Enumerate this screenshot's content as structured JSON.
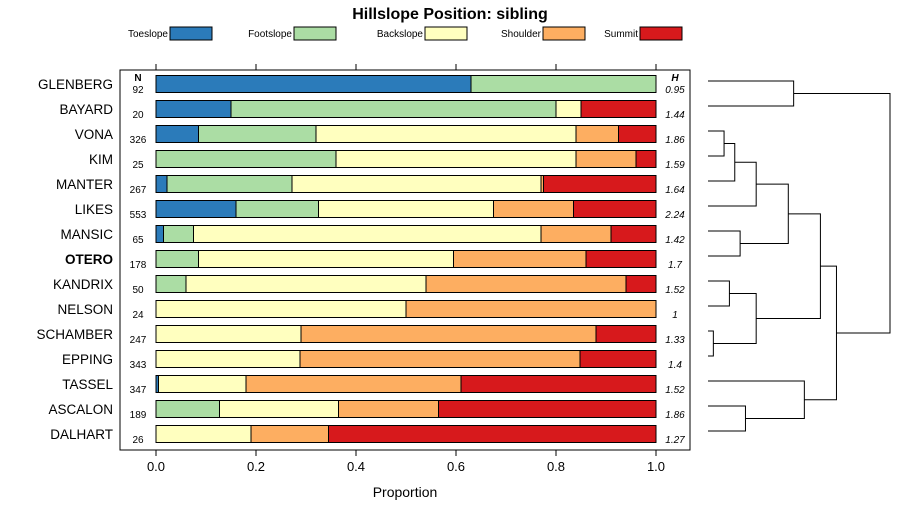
{
  "chart_data": {
    "type": "bar",
    "stacked": true,
    "orientation": "horizontal",
    "title": "Hillslope Position: sibling",
    "xlabel": "Proportion",
    "xlim": [
      0,
      1
    ],
    "xticks": [
      "0.0",
      "0.2",
      "0.4",
      "0.6",
      "0.8",
      "1.0"
    ],
    "n_header": "N",
    "h_header": "H",
    "legend": [
      {
        "name": "Toeslope",
        "color": "#2b7bba"
      },
      {
        "name": "Footslope",
        "color": "#abdda4"
      },
      {
        "name": "Backslope",
        "color": "#ffffbf"
      },
      {
        "name": "Shoulder",
        "color": "#fdae61"
      },
      {
        "name": "Summit",
        "color": "#d7191c"
      }
    ],
    "highlight": "OTERO",
    "categories": [
      {
        "name": "GLENBERG",
        "n": "92",
        "h": "0.95",
        "values": [
          0.63,
          0.37,
          0,
          0,
          0
        ]
      },
      {
        "name": "BAYARD",
        "n": "20",
        "h": "1.44",
        "values": [
          0.15,
          0.65,
          0.05,
          0,
          0.15
        ]
      },
      {
        "name": "VONA",
        "n": "326",
        "h": "1.86",
        "values": [
          0.085,
          0.235,
          0.52,
          0.085,
          0.075
        ]
      },
      {
        "name": "KIM",
        "n": "25",
        "h": "1.59",
        "values": [
          0,
          0.36,
          0.48,
          0.12,
          0.04
        ]
      },
      {
        "name": "MANTER",
        "n": "267",
        "h": "1.64",
        "values": [
          0.022,
          0.25,
          0.498,
          0.005,
          0.225
        ]
      },
      {
        "name": "LIKES",
        "n": "553",
        "h": "2.24",
        "values": [
          0.16,
          0.165,
          0.35,
          0.16,
          0.165
        ]
      },
      {
        "name": "MANSIC",
        "n": "65",
        "h": "1.42",
        "values": [
          0.015,
          0.06,
          0.695,
          0.14,
          0.09
        ]
      },
      {
        "name": "OTERO",
        "n": "178",
        "h": "1.7",
        "values": [
          0,
          0.085,
          0.51,
          0.265,
          0.14
        ]
      },
      {
        "name": "KANDRIX",
        "n": "50",
        "h": "1.52",
        "values": [
          0,
          0.06,
          0.48,
          0.4,
          0.06
        ]
      },
      {
        "name": "NELSON",
        "n": "24",
        "h": "1",
        "values": [
          0,
          0,
          0.5,
          0.5,
          0
        ]
      },
      {
        "name": "SCHAMBER",
        "n": "247",
        "h": "1.33",
        "values": [
          0,
          0,
          0.29,
          0.59,
          0.12
        ]
      },
      {
        "name": "EPPING",
        "n": "343",
        "h": "1.4",
        "values": [
          0,
          0,
          0.288,
          0.56,
          0.152
        ]
      },
      {
        "name": "TASSEL",
        "n": "347",
        "h": "1.52",
        "values": [
          0.005,
          0,
          0.175,
          0.43,
          0.39
        ]
      },
      {
        "name": "ASCALON",
        "n": "189",
        "h": "1.86",
        "values": [
          0,
          0.127,
          0.238,
          0.2,
          0.435
        ]
      },
      {
        "name": "DALHART",
        "n": "26",
        "h": "1.27",
        "values": [
          0,
          0,
          0.19,
          0.155,
          0.655
        ]
      }
    ],
    "dendrogram": {
      "type": "hierarchical clustering",
      "merges": [
        {
          "name": "node-vona-kim",
          "a": "VONA",
          "b": "KIM",
          "height": 0.3
        },
        {
          "name": "node-vk-manter",
          "a": "node-vona-kim",
          "b": "MANTER",
          "height": 0.5
        },
        {
          "name": "node-vkm-likes",
          "a": "node-vk-manter",
          "b": "LIKES",
          "height": 0.9
        },
        {
          "name": "node-mansic-otero",
          "a": "MANSIC",
          "b": "OTERO",
          "height": 0.6
        },
        {
          "name": "node-upper-mid",
          "a": "node-vkm-likes",
          "b": "node-mansic-otero",
          "height": 1.5
        },
        {
          "name": "node-kandrix-nelson",
          "a": "KANDRIX",
          "b": "NELSON",
          "height": 0.4
        },
        {
          "name": "node-schamber-epping",
          "a": "SCHAMBER",
          "b": "EPPING",
          "height": 0.1
        },
        {
          "name": "node-kn-se",
          "a": "node-kandrix-nelson",
          "b": "node-schamber-epping",
          "height": 0.9
        },
        {
          "name": "node-middle",
          "a": "node-upper-mid",
          "b": "node-kn-se",
          "height": 2.1
        },
        {
          "name": "node-ascalon-dalhart",
          "a": "ASCALON",
          "b": "DALHART",
          "height": 0.7
        },
        {
          "name": "node-tassel-ad",
          "a": "TASSEL",
          "b": "node-ascalon-dalhart",
          "height": 1.8
        },
        {
          "name": "node-lower",
          "a": "node-middle",
          "b": "node-tassel-ad",
          "height": 2.4
        },
        {
          "name": "node-glenberg-bayard",
          "a": "GLENBERG",
          "b": "BAYARD",
          "height": 1.6
        },
        {
          "name": "node-root",
          "a": "node-glenberg-bayard",
          "b": "node-lower",
          "height": 3.4
        }
      ]
    }
  }
}
